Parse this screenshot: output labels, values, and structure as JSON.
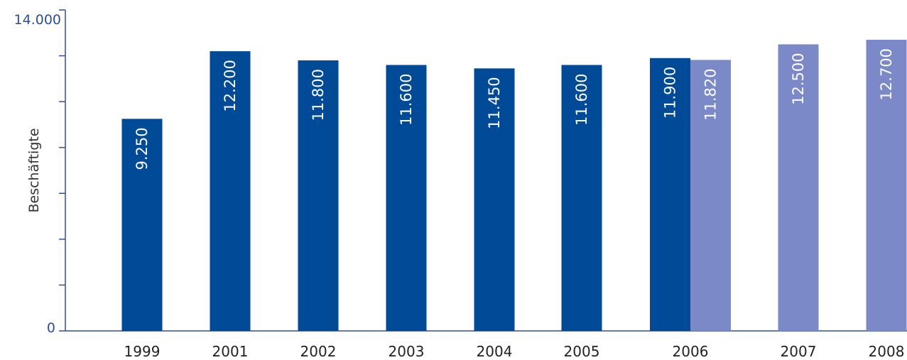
{
  "chart_data": {
    "type": "bar",
    "ylabel": "Beschäftigte",
    "ylim": [
      0,
      14000
    ],
    "y_tick_labels": [
      "0",
      "14.000"
    ],
    "y_ticks_count": 7,
    "categories": [
      "1999",
      "2001",
      "2002",
      "2003",
      "2004",
      "2005",
      "2006",
      "2007",
      "2008"
    ],
    "series": [
      {
        "color": "#004a97",
        "values": [
          9250,
          12200,
          11800,
          11600,
          11450,
          11600,
          11900,
          null,
          null
        ],
        "labels": [
          "9.250",
          "12.200",
          "11.800",
          "11.600",
          "11.450",
          "11.600",
          "11.900",
          "",
          ""
        ]
      },
      {
        "color": "#7b89c8",
        "values": [
          null,
          null,
          null,
          null,
          null,
          null,
          11820,
          12500,
          12700
        ],
        "labels": [
          "",
          "",
          "",
          "",
          "",
          "",
          "11.820",
          "12.500",
          "12.700"
        ]
      }
    ],
    "axis_color": "#2e4d9b"
  }
}
